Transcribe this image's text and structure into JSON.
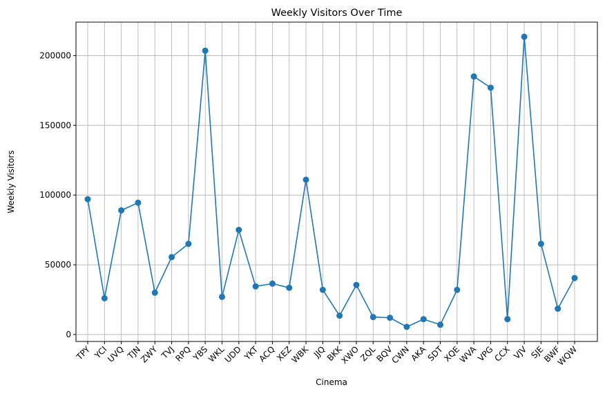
{
  "chart_data": {
    "type": "line",
    "title": "Weekly Visitors Over Time",
    "xlabel": "Cinema",
    "ylabel": "Weekly Visitors",
    "categories": [
      "TPY",
      "YCI",
      "UVQ",
      "TJN",
      "ZWY",
      "TVJ",
      "RPQ",
      "YBS",
      "WKL",
      "UDD",
      "YKT",
      "ACQ",
      "XEZ",
      "WBK",
      "JJQ",
      "BKK",
      "XWO",
      "ZQL",
      "BQV",
      "CWN",
      "AKA",
      "SDT",
      "XQE",
      "WVA",
      "VPG",
      "CCX",
      "VJV",
      "SJE",
      "BWF",
      "WQW"
    ],
    "series": [
      {
        "values": [
          97000,
          26000,
          89000,
          94500,
          30000,
          55500,
          65000,
          203500,
          27000,
          75000,
          34500,
          36500,
          33500,
          111000,
          32000,
          13500,
          35500,
          12500,
          12000,
          5500,
          11000,
          7000,
          32000,
          185000,
          177000,
          11000,
          213500,
          65000,
          18500,
          40500
        ]
      }
    ],
    "ylim": [
      -5000,
      224000
    ],
    "yticks": [
      0,
      50000,
      100000,
      150000,
      200000
    ],
    "grid": true,
    "color": "#1f77b4",
    "marker": "circle"
  }
}
